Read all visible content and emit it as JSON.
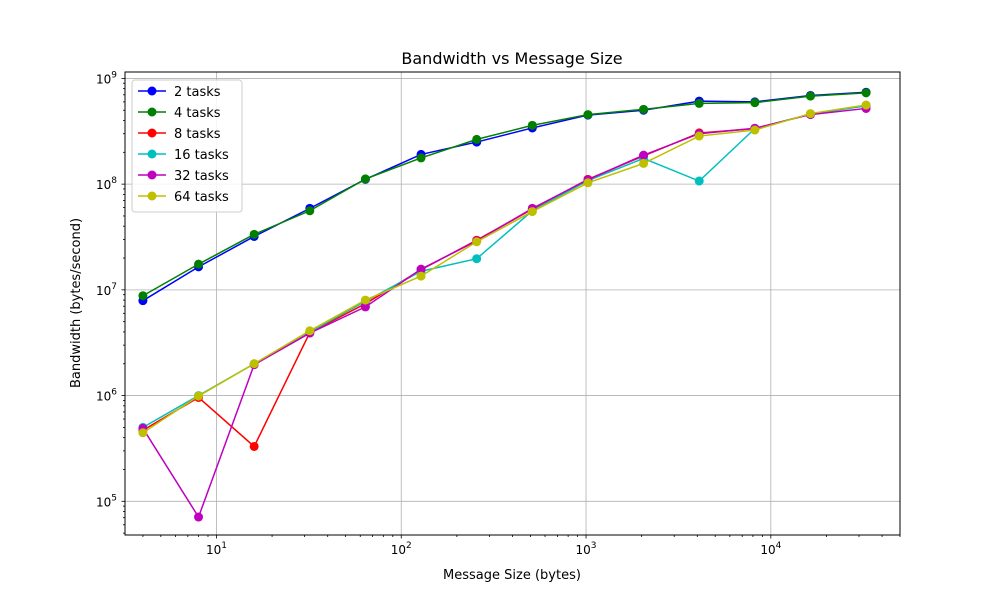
{
  "chart_data": {
    "type": "line",
    "title": "Bandwidth vs Message Size",
    "xlabel": "Message Size (bytes)",
    "ylabel": "Bandwidth (bytes/second)",
    "xscale": "log",
    "yscale": "log",
    "xlim": [
      3.2,
      50000
    ],
    "ylim": [
      48000,
      1150000000
    ],
    "grid": true,
    "legend_position": "top-left",
    "x_ticks": [
      {
        "value": 10,
        "base": "10",
        "exp": "1"
      },
      {
        "value": 100,
        "base": "10",
        "exp": "2"
      },
      {
        "value": 1000,
        "base": "10",
        "exp": "3"
      },
      {
        "value": 10000,
        "base": "10",
        "exp": "4"
      }
    ],
    "y_ticks": [
      {
        "value": 100000,
        "base": "10",
        "exp": "5"
      },
      {
        "value": 1000000,
        "base": "10",
        "exp": "6"
      },
      {
        "value": 10000000,
        "base": "10",
        "exp": "7"
      },
      {
        "value": 100000000,
        "base": "10",
        "exp": "8"
      },
      {
        "value": 1000000000,
        "base": "10",
        "exp": "9"
      }
    ],
    "x": [
      4,
      8,
      16,
      32,
      64,
      128,
      256,
      512,
      1024,
      2048,
      4096,
      8192,
      16384,
      32768
    ],
    "series": [
      {
        "name": "2 tasks",
        "color": "#0000ff",
        "values": [
          7900000,
          16500000,
          32000000,
          59000000,
          111000000,
          191000000,
          250000000,
          340000000,
          450000000,
          500000000,
          610000000,
          600000000,
          690000000,
          740000000
        ]
      },
      {
        "name": "4 tasks",
        "color": "#008000",
        "values": [
          8800000,
          17500000,
          33500000,
          56000000,
          112000000,
          177000000,
          265000000,
          360000000,
          455000000,
          510000000,
          580000000,
          590000000,
          680000000,
          730000000
        ]
      },
      {
        "name": "8 tasks",
        "color": "#ff0000",
        "values": [
          470000,
          960000,
          330000,
          3950000,
          7400000,
          15500000,
          29500000,
          58000000,
          111000000,
          185000000,
          305000000,
          335000000,
          460000000,
          555000000
        ]
      },
      {
        "name": "16 tasks",
        "color": "#00bfbf",
        "values": [
          500000,
          1000000,
          2000000,
          4000000,
          7800000,
          15000000,
          19700000,
          56000000,
          108000000,
          175000000,
          107000000,
          335000000,
          460000000,
          550000000
        ]
      },
      {
        "name": "32 tasks",
        "color": "#bf00bf",
        "values": [
          490000,
          71000,
          1960000,
          3900000,
          6900000,
          15700000,
          29000000,
          59000000,
          110000000,
          188000000,
          300000000,
          338000000,
          455000000,
          520000000
        ]
      },
      {
        "name": "64 tasks",
        "color": "#bfbf00",
        "values": [
          445000,
          990000,
          2000000,
          4100000,
          8000000,
          13500000,
          28500000,
          55000000,
          103000000,
          157000000,
          285000000,
          325000000,
          465000000,
          560000000
        ]
      }
    ]
  }
}
